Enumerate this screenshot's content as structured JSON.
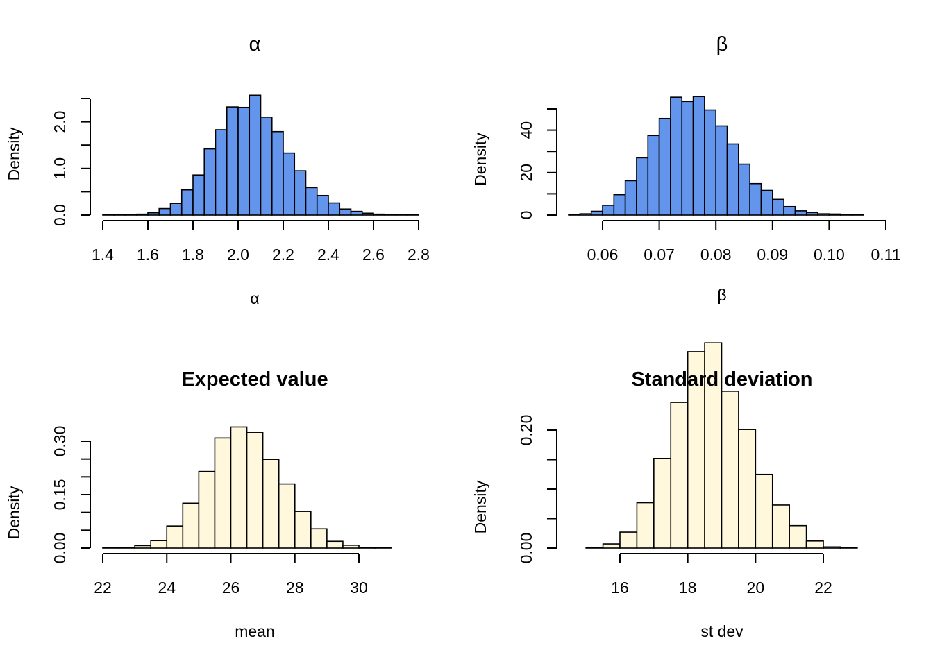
{
  "chart_data": [
    {
      "type": "bar",
      "title": "α",
      "title_weight": "normal",
      "xlabel": "α",
      "ylabel": "Density",
      "fill": "#6495ED",
      "xlim": [
        1.4,
        2.8
      ],
      "ylim": [
        0,
        2.5
      ],
      "x_ticks": [
        "1.4",
        "1.6",
        "1.8",
        "2.0",
        "2.2",
        "2.4",
        "2.6",
        "2.8"
      ],
      "y_ticks": [
        "0.0",
        "1.0",
        "2.0"
      ],
      "bin_start": 1.4,
      "bin_width": 0.05,
      "values": [
        0.005,
        0.006,
        0.01,
        0.02,
        0.05,
        0.14,
        0.25,
        0.54,
        0.86,
        1.42,
        1.83,
        2.32,
        2.31,
        2.57,
        2.1,
        1.79,
        1.33,
        0.95,
        0.59,
        0.42,
        0.26,
        0.13,
        0.08,
        0.04,
        0.02,
        0.01,
        0.005,
        0.003
      ]
    },
    {
      "type": "bar",
      "title": "β",
      "title_weight": "normal",
      "xlabel": "β",
      "ylabel": "Density",
      "fill": "#6495ED",
      "xlim": [
        0.06,
        0.11
      ],
      "ylim": [
        0,
        50
      ],
      "x_ticks": [
        "0.06",
        "0.07",
        "0.08",
        "0.09",
        "0.10",
        "0.11"
      ],
      "y_ticks": [
        "0",
        "20",
        "40"
      ],
      "bin_start": 0.054,
      "bin_width": 0.002,
      "values": [
        0.2,
        0.6,
        1.8,
        4.6,
        9.6,
        16.2,
        27.0,
        37.5,
        45.5,
        55.5,
        53.5,
        55.8,
        49.5,
        42.0,
        33.5,
        24.0,
        14.8,
        11.6,
        7.4,
        4.0,
        2.0,
        1.2,
        0.6,
        0.5,
        0.2,
        0.1
      ]
    },
    {
      "type": "bar",
      "title": "Expected value",
      "title_weight": "bold",
      "xlabel": "mean",
      "ylabel": "Density",
      "fill": "#FFF8DC",
      "xlim": [
        22,
        30
      ],
      "ylim": [
        0,
        0.3
      ],
      "x_ticks": [
        "22",
        "24",
        "26",
        "28",
        "30"
      ],
      "y_ticks": [
        "0.00",
        "0.15",
        "0.30"
      ],
      "bin_start": 22,
      "bin_width": 0.5,
      "values": [
        0.0005,
        0.002,
        0.007,
        0.021,
        0.062,
        0.126,
        0.215,
        0.309,
        0.34,
        0.325,
        0.249,
        0.18,
        0.103,
        0.054,
        0.019,
        0.008,
        0.002,
        0.001
      ]
    },
    {
      "type": "bar",
      "title": "Standard deviation",
      "title_weight": "bold",
      "xlabel": "st dev",
      "ylabel": "Density",
      "fill": "#FFF8DC",
      "xlim": [
        16,
        22
      ],
      "ylim": [
        0,
        0.2
      ],
      "x_ticks": [
        "16",
        "18",
        "20",
        "22"
      ],
      "y_ticks": [
        "0.00",
        "0.20"
      ],
      "bin_start": 15,
      "bin_width": 0.5,
      "values": [
        0.001,
        0.007,
        0.027,
        0.077,
        0.152,
        0.247,
        0.333,
        0.348,
        0.266,
        0.201,
        0.125,
        0.073,
        0.038,
        0.012,
        0.002,
        0.001
      ]
    }
  ]
}
